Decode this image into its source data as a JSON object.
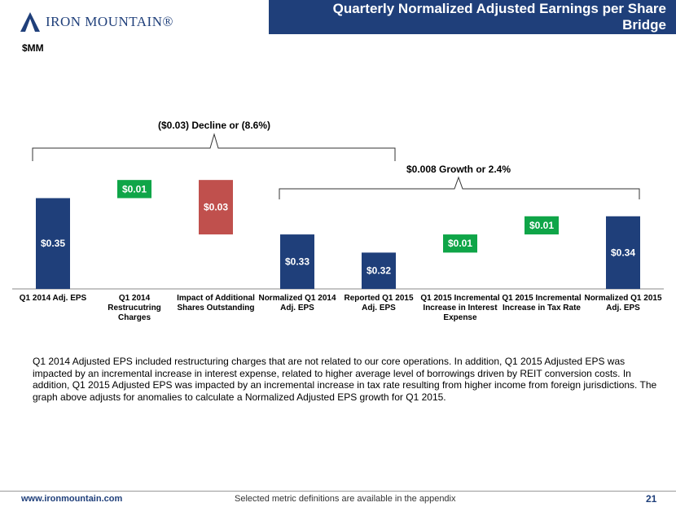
{
  "header": {
    "title": "Quarterly Normalized Adjusted Earnings per Share Bridge",
    "logo": "IRON MOUNTAIN®"
  },
  "chart_data": {
    "type": "waterfall",
    "unit_label": "$MM",
    "categories": [
      "Q1 2014 Adj. EPS",
      "Q1 2014 Restrucutring Charges",
      "Impact of Additional Shares Outstanding",
      "Normalized Q1 2014 Adj. EPS",
      "Reported Q1 2015 Adj. EPS",
      "Q1 2015 Incremental Increase in Interest Expense",
      "Q1 2015 Incremental Increase in Tax Rate",
      "Normalized Q1 2015 Adj. EPS"
    ],
    "values": [
      0.35,
      0.01,
      0.03,
      0.33,
      0.32,
      0.01,
      0.01,
      0.34
    ],
    "value_labels": [
      "$0.35",
      "$0.01",
      "$0.03",
      "$0.33",
      "$0.32",
      "$0.01",
      "$0.01",
      "$0.34"
    ],
    "measure": [
      "total",
      "increase",
      "decrease",
      "total",
      "total",
      "increase",
      "increase",
      "total"
    ],
    "colors": {
      "total": "#1f3f7a",
      "increase": "#0fa548",
      "decrease": "#c0504d"
    },
    "ylim": [
      0.3,
      0.365
    ],
    "annotations": [
      "($0.03) Decline or (8.6%)",
      "$0.008 Growth or 2.4%"
    ]
  },
  "note": "Q1 2014 Adjusted EPS included restructuring charges that are not related to our core operations. In addition, Q1 2015 Adjusted EPS was impacted by an incremental increase in interest expense, related to higher average level of borrowings driven by REIT conversion costs. In addition, Q1 2015 Adjusted EPS was impacted by an incremental increase in tax rate resulting from higher income from foreign jurisdictions. The graph above adjusts for anomalies to calculate a Normalized Adjusted EPS growth for Q1 2015.",
  "footer": {
    "url": "www.ironmountain.com",
    "text": "Selected metric definitions are available in the appendix",
    "page": "21"
  }
}
